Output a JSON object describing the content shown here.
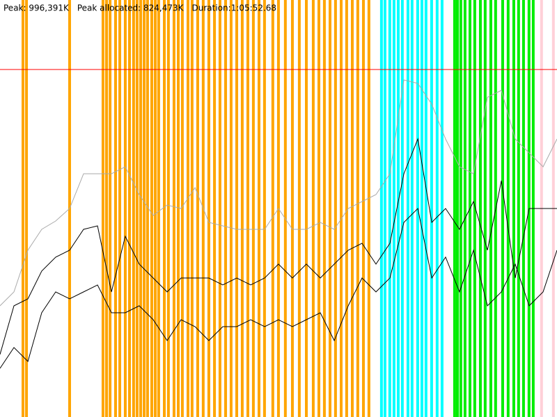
{
  "chart_data": {
    "type": "line",
    "annotations": [
      "Peak: 996,391K",
      "Peak allocated: 824,473K",
      "Duration:1:05:52.68"
    ],
    "xlim": [
      0,
      3952.68
    ],
    "ylim": [
      0,
      1195800
    ],
    "reference_line": {
      "value": 996391,
      "color": "#ff0000"
    },
    "x": [
      0,
      99,
      198,
      296,
      395,
      494,
      593,
      692,
      791,
      889,
      988,
      1087,
      1186,
      1285,
      1384,
      1482,
      1581,
      1680,
      1779,
      1878,
      1976,
      2075,
      2174,
      2273,
      2372,
      2471,
      2569,
      2668,
      2767,
      2866,
      2965,
      3064,
      3162,
      3261,
      3360,
      3459,
      3558,
      3656,
      3755,
      3854,
      3952.68
    ],
    "events": [
      {
        "color": "#ffa500",
        "x": [
          163,
          188,
          494,
          731,
          756,
          781,
          820,
          850,
          889,
          919,
          948,
          973,
          998,
          1023,
          1047,
          1077,
          1102,
          1126,
          1166,
          1195,
          1235,
          1265,
          1294,
          1334,
          1363,
          1403,
          1442,
          1482,
          1522,
          1561,
          1601,
          1640,
          1680,
          1719,
          1759,
          1798,
          1838,
          1877,
          1936,
          1976,
          2025,
          2075,
          2124,
          2174,
          2223,
          2263,
          2302,
          2342,
          2381,
          2421,
          2460,
          2500,
          2539,
          2579,
          2618
        ]
      },
      {
        "color": "#00ffff",
        "x": [
          2707,
          2732,
          2766,
          2796,
          2826,
          2855,
          2895,
          2924,
          2964,
          2994,
          3023,
          3063,
          3102,
          3137
        ]
      },
      {
        "color": "#00ee00",
        "x": [
          3226,
          3246,
          3270,
          3300,
          3335,
          3369,
          3409,
          3443,
          3483,
          3517,
          3567,
          3606,
          3646,
          3680,
          3715,
          3754,
          3784
        ]
      },
      {
        "color": "#ffd0d8",
        "x": [
          3843,
          3927
        ]
      }
    ],
    "series": [
      {
        "color": "#aaaaaa",
        "values": [
          318880,
          358740,
          478320,
          538110,
          562026,
          597900,
          697550,
          697550,
          697550,
          717480,
          637760,
          577970,
          607865,
          597900,
          657690,
          558040,
          548075,
          538110,
          538110,
          538110,
          597900,
          538110,
          538110,
          558040,
          538110,
          597900,
          617830,
          637760,
          697550,
          966605,
          956640,
          896850,
          797200,
          717480,
          697550,
          916780,
          936710,
          797200,
          757300,
          717480,
          797200
        ]
      },
      {
        "color": "#000000",
        "values": [
          179370,
          318880,
          338810,
          418530,
          458390,
          478320,
          538110,
          548075,
          358740,
          518180,
          438460,
          398600,
          358740,
          398600,
          398600,
          398600,
          378670,
          398600,
          378670,
          398600,
          438460,
          398600,
          438460,
          398600,
          438460,
          478320,
          498250,
          438460,
          498250,
          697550,
          797200,
          558040,
          597900,
          538110,
          617830,
          478320,
          677620,
          398600,
          597900,
          597900,
          597900
        ]
      },
      {
        "color": "#000000",
        "values": [
          139510,
          199300,
          159440,
          298950,
          358740,
          338810,
          358740,
          378670,
          298950,
          298950,
          318880,
          279020,
          219230,
          279020,
          259090,
          219230,
          259090,
          259090,
          279020,
          259090,
          279020,
          259090,
          279020,
          298950,
          219230,
          318880,
          398600,
          358740,
          398600,
          558040,
          597900,
          398600,
          458390,
          358740,
          478320,
          318880,
          358740,
          438460,
          318880,
          358740,
          478320
        ]
      }
    ]
  }
}
